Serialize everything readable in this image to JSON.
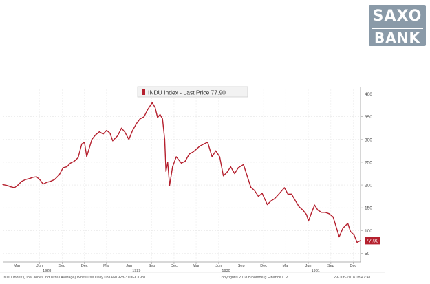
{
  "logo": {
    "line1": "SAXO",
    "line2": "BANK",
    "color": "#8a9aa8"
  },
  "chart_data": {
    "type": "line",
    "legend": "INDU Index - Last Price 77.90",
    "last_value_label": "77.90",
    "footer_left": "INDU Index (Dow Jones Industrial Average) White use  Daily 03JAN1928-31DEC1931",
    "footer_center": "Copyright® 2018 Bloomberg Finance L.P.",
    "footer_right": "29-Jun-2018 08:47:41",
    "ylim": [
      40,
      410
    ],
    "y_ticks": [
      50,
      100,
      150,
      200,
      250,
      300,
      350,
      400
    ],
    "xlim": [
      "1928-01-03",
      "1931-12-31"
    ],
    "month_ticks": [
      {
        "label": "Mar",
        "x": "1928-03-01"
      },
      {
        "label": "Jun",
        "x": "1928-06-01"
      },
      {
        "label": "Sep",
        "x": "1928-09-01"
      },
      {
        "label": "Dec",
        "x": "1928-12-01"
      },
      {
        "label": "Mar",
        "x": "1929-03-01"
      },
      {
        "label": "Jun",
        "x": "1929-06-01"
      },
      {
        "label": "Sep",
        "x": "1929-09-01"
      },
      {
        "label": "Dec",
        "x": "1929-12-01"
      },
      {
        "label": "Mar",
        "x": "1930-03-01"
      },
      {
        "label": "Jun",
        "x": "1930-06-01"
      },
      {
        "label": "Sep",
        "x": "1930-09-01"
      },
      {
        "label": "Dec",
        "x": "1930-12-01"
      },
      {
        "label": "Mar",
        "x": "1931-03-01"
      },
      {
        "label": "Jun",
        "x": "1931-06-01"
      },
      {
        "label": "Sep",
        "x": "1931-09-01"
      },
      {
        "label": "Dec",
        "x": "1931-12-01"
      }
    ],
    "year_ticks": [
      {
        "label": "1928",
        "x": "1928-07-01"
      },
      {
        "label": "1929",
        "x": "1929-07-01"
      },
      {
        "label": "1930",
        "x": "1930-07-01"
      },
      {
        "label": "1931",
        "x": "1931-07-01"
      }
    ],
    "series": [
      {
        "color": "#b5202e",
        "points": [
          [
            "1928-01-03",
            201
          ],
          [
            "1928-01-20",
            199
          ],
          [
            "1928-02-05",
            196
          ],
          [
            "1928-02-20",
            194
          ],
          [
            "1928-03-05",
            200
          ],
          [
            "1928-03-20",
            208
          ],
          [
            "1928-04-05",
            212
          ],
          [
            "1928-04-20",
            214
          ],
          [
            "1928-05-05",
            217
          ],
          [
            "1928-05-20",
            218
          ],
          [
            "1928-06-05",
            210
          ],
          [
            "1928-06-15",
            202
          ],
          [
            "1928-07-01",
            206
          ],
          [
            "1928-07-15",
            208
          ],
          [
            "1928-08-01",
            212
          ],
          [
            "1928-08-20",
            222
          ],
          [
            "1928-09-05",
            238
          ],
          [
            "1928-09-20",
            240
          ],
          [
            "1928-10-05",
            248
          ],
          [
            "1928-10-20",
            252
          ],
          [
            "1928-11-05",
            260
          ],
          [
            "1928-11-20",
            290
          ],
          [
            "1928-12-01",
            294
          ],
          [
            "1928-12-10",
            262
          ],
          [
            "1928-12-31",
            300
          ],
          [
            "1929-01-15",
            310
          ],
          [
            "1929-01-31",
            317
          ],
          [
            "1929-02-15",
            312
          ],
          [
            "1929-03-01",
            320
          ],
          [
            "1929-03-15",
            314
          ],
          [
            "1929-03-26",
            297
          ],
          [
            "1929-04-15",
            308
          ],
          [
            "1929-05-01",
            325
          ],
          [
            "1929-05-15",
            316
          ],
          [
            "1929-05-31",
            300
          ],
          [
            "1929-06-15",
            320
          ],
          [
            "1929-07-01",
            335
          ],
          [
            "1929-07-15",
            345
          ],
          [
            "1929-08-01",
            350
          ],
          [
            "1929-08-15",
            365
          ],
          [
            "1929-09-03",
            381
          ],
          [
            "1929-09-15",
            370
          ],
          [
            "1929-09-25",
            348
          ],
          [
            "1929-10-05",
            355
          ],
          [
            "1929-10-15",
            345
          ],
          [
            "1929-10-24",
            300
          ],
          [
            "1929-10-29",
            230
          ],
          [
            "1929-11-05",
            250
          ],
          [
            "1929-11-13",
            199
          ],
          [
            "1929-11-25",
            240
          ],
          [
            "1929-12-10",
            262
          ],
          [
            "1929-12-31",
            248
          ],
          [
            "1930-01-15",
            252
          ],
          [
            "1930-02-01",
            268
          ],
          [
            "1930-02-15",
            272
          ],
          [
            "1930-03-01",
            278
          ],
          [
            "1930-03-15",
            285
          ],
          [
            "1930-04-01",
            290
          ],
          [
            "1930-04-17",
            294
          ],
          [
            "1930-05-05",
            262
          ],
          [
            "1930-05-20",
            275
          ],
          [
            "1930-06-05",
            262
          ],
          [
            "1930-06-20",
            220
          ],
          [
            "1930-07-05",
            228
          ],
          [
            "1930-07-20",
            240
          ],
          [
            "1930-08-05",
            225
          ],
          [
            "1930-08-20",
            238
          ],
          [
            "1930-09-10",
            245
          ],
          [
            "1930-09-25",
            220
          ],
          [
            "1930-10-10",
            195
          ],
          [
            "1930-10-25",
            188
          ],
          [
            "1930-11-10",
            175
          ],
          [
            "1930-11-25",
            182
          ],
          [
            "1930-12-16",
            157
          ],
          [
            "1930-12-31",
            165
          ],
          [
            "1931-01-15",
            170
          ],
          [
            "1931-02-01",
            180
          ],
          [
            "1931-02-24",
            194
          ],
          [
            "1931-03-10",
            180
          ],
          [
            "1931-03-25",
            180
          ],
          [
            "1931-04-10",
            165
          ],
          [
            "1931-04-25",
            152
          ],
          [
            "1931-05-10",
            145
          ],
          [
            "1931-05-25",
            135
          ],
          [
            "1931-06-02",
            121
          ],
          [
            "1931-06-15",
            140
          ],
          [
            "1931-06-27",
            156
          ],
          [
            "1931-07-10",
            145
          ],
          [
            "1931-07-25",
            140
          ],
          [
            "1931-08-10",
            140
          ],
          [
            "1931-08-25",
            137
          ],
          [
            "1931-09-10",
            130
          ],
          [
            "1931-09-25",
            104
          ],
          [
            "1931-10-05",
            86
          ],
          [
            "1931-10-20",
            105
          ],
          [
            "1931-11-09",
            116
          ],
          [
            "1931-11-20",
            98
          ],
          [
            "1931-12-05",
            90
          ],
          [
            "1931-12-17",
            74
          ],
          [
            "1931-12-31",
            77.9
          ]
        ]
      }
    ]
  }
}
